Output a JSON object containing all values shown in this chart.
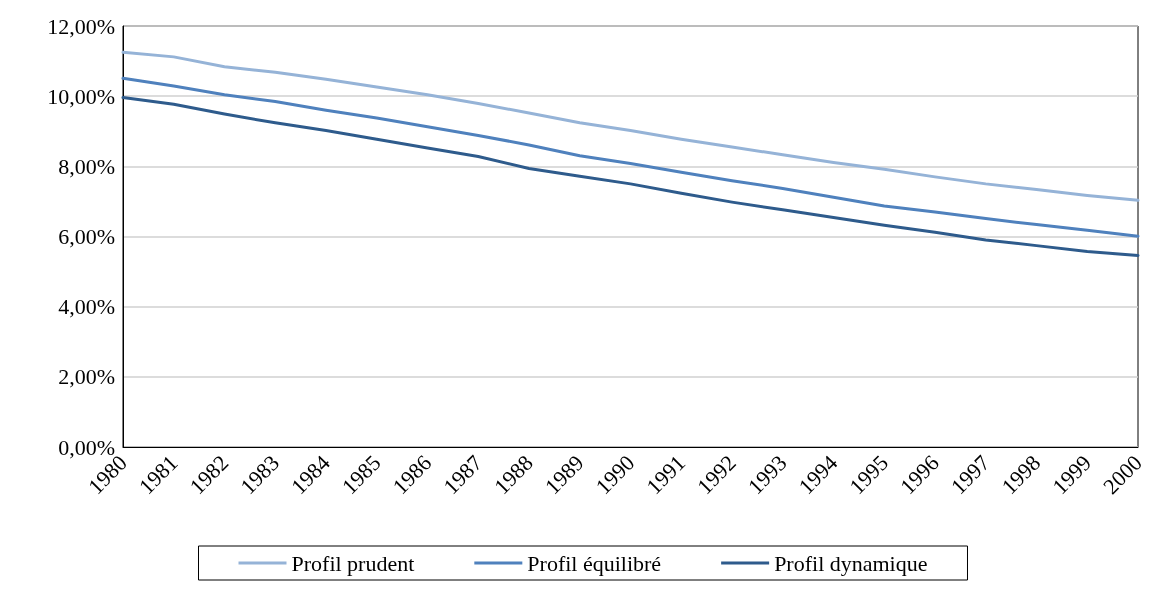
{
  "chart_data": {
    "type": "line",
    "categories": [
      "1980",
      "1981",
      "1982",
      "1983",
      "1984",
      "1985",
      "1986",
      "1987",
      "1988",
      "1989",
      "1990",
      "1991",
      "1992",
      "1993",
      "1994",
      "1995",
      "1996",
      "1997",
      "1998",
      "1999",
      "2000"
    ],
    "series": [
      {
        "name": "Profil prudent",
        "color": "#95b3d7",
        "values": [
          11.25,
          11.12,
          10.84,
          10.68,
          10.48,
          10.26,
          10.04,
          9.79,
          9.52,
          9.24,
          9.02,
          8.77,
          8.55,
          8.33,
          8.11,
          7.92,
          7.7,
          7.5,
          7.34,
          7.17,
          7.03
        ]
      },
      {
        "name": "Profil équilibré",
        "color": "#4f81bd",
        "values": [
          10.51,
          10.29,
          10.04,
          9.85,
          9.6,
          9.38,
          9.13,
          8.88,
          8.61,
          8.3,
          8.08,
          7.83,
          7.59,
          7.37,
          7.12,
          6.87,
          6.7,
          6.51,
          6.34,
          6.18,
          6.01
        ]
      },
      {
        "name": "Profil dynamique",
        "color": "#2e5b8c",
        "values": [
          9.96,
          9.77,
          9.49,
          9.24,
          9.02,
          8.77,
          8.52,
          8.28,
          7.94,
          7.72,
          7.5,
          7.23,
          6.98,
          6.76,
          6.54,
          6.32,
          6.12,
          5.9,
          5.74,
          5.57,
          5.46
        ]
      }
    ],
    "ylim": [
      0,
      12
    ],
    "yticks": [
      {
        "value": 0,
        "label": "0,00%"
      },
      {
        "value": 2,
        "label": "2,00%"
      },
      {
        "value": 4,
        "label": "4,00%"
      },
      {
        "value": 6,
        "label": "6,00%"
      },
      {
        "value": 8,
        "label": "8,00%"
      },
      {
        "value": 10,
        "label": "10,00%"
      },
      {
        "value": 12,
        "label": "12,00%"
      }
    ],
    "grid": "y",
    "legend": "bottom",
    "marker": "none",
    "line_style": "solid"
  }
}
